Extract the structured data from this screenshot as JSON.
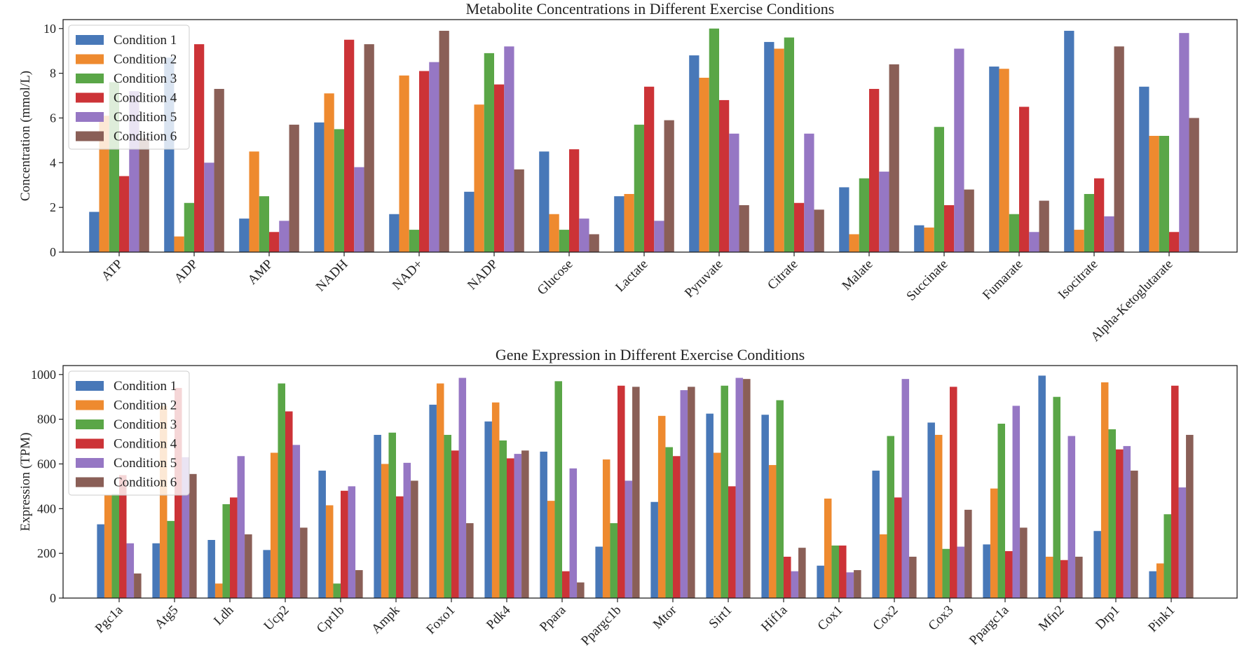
{
  "colors": [
    "#4878b8",
    "#ee8a2f",
    "#5aa647",
    "#cc3337",
    "#9677c4",
    "#8a5f57"
  ],
  "chart_data": [
    {
      "type": "bar",
      "title": "Metabolite Concentrations in Different Exercise Conditions",
      "xlabel": "",
      "ylabel": "Concentration (mmol/L)",
      "ylim": [
        0,
        10.4
      ],
      "yticks": [
        0,
        2,
        4,
        6,
        8,
        10
      ],
      "ytick_labels": [
        "0",
        "2",
        "4",
        "6",
        "8",
        "10"
      ],
      "legend_position": "top-left",
      "grid": false,
      "categories": [
        "ATP",
        "ADP",
        "AMP",
        "NADH",
        "NAD+",
        "NADP",
        "Glucose",
        "Lactate",
        "Pyruvate",
        "Citrate",
        "Malate",
        "Succinate",
        "Fumarate",
        "Isocitrate",
        "Alpha-Ketoglutarate"
      ],
      "series": [
        {
          "name": "Condition 1",
          "values": [
            1.8,
            8.7,
            1.5,
            5.8,
            1.7,
            2.7,
            4.5,
            2.5,
            8.8,
            9.4,
            2.9,
            1.2,
            8.3,
            9.9,
            7.4
          ]
        },
        {
          "name": "Condition 2",
          "values": [
            6.1,
            0.7,
            4.5,
            7.1,
            7.9,
            6.6,
            1.7,
            2.6,
            7.8,
            9.1,
            0.8,
            1.1,
            8.2,
            1.0,
            5.2
          ]
        },
        {
          "name": "Condition 3",
          "values": [
            7.6,
            2.2,
            2.5,
            5.5,
            1.0,
            8.9,
            1.0,
            5.7,
            10.0,
            9.6,
            3.3,
            5.6,
            1.7,
            2.6,
            5.2
          ]
        },
        {
          "name": "Condition 4",
          "values": [
            3.4,
            9.3,
            0.9,
            9.5,
            8.1,
            7.5,
            4.6,
            7.4,
            6.8,
            2.2,
            7.3,
            2.1,
            6.5,
            3.3,
            0.9
          ]
        },
        {
          "name": "Condition 5",
          "values": [
            7.2,
            4.0,
            1.4,
            3.8,
            8.5,
            9.2,
            1.5,
            1.4,
            5.3,
            5.3,
            3.6,
            9.1,
            0.9,
            1.6,
            9.8
          ]
        },
        {
          "name": "Condition 6",
          "values": [
            5.1,
            7.3,
            5.7,
            9.3,
            9.9,
            3.7,
            0.8,
            5.9,
            2.1,
            1.9,
            8.4,
            2.8,
            2.3,
            9.2,
            6.0
          ]
        }
      ]
    },
    {
      "type": "bar",
      "title": "Gene Expression in Different Exercise Conditions",
      "xlabel": "",
      "ylabel": "Expression (TPM)",
      "ylim": [
        0,
        1040
      ],
      "yticks": [
        0,
        200,
        400,
        600,
        800,
        1000
      ],
      "ytick_labels": [
        "0",
        "200",
        "400",
        "600",
        "800",
        "1000"
      ],
      "legend_position": "top-left",
      "grid": false,
      "categories": [
        "Pgc1a",
        "Atg5",
        "Ldh",
        "Ucp2",
        "Cpt1b",
        "Ampk",
        "Foxo1",
        "Pdk4",
        "Ppara",
        "Ppargc1b",
        "Mtor",
        "Sirt1",
        "Hif1a",
        "Cox1",
        "Cox2",
        "Cox3",
        "Ppargc1a",
        "Mfn2",
        "Drp1",
        "Pink1"
      ],
      "series": [
        {
          "name": "Condition 1",
          "values": [
            330,
            245,
            260,
            215,
            570,
            730,
            865,
            790,
            655,
            230,
            430,
            825,
            820,
            145,
            570,
            785,
            240,
            995,
            300,
            120
          ]
        },
        {
          "name": "Condition 2",
          "values": [
            460,
            860,
            65,
            650,
            415,
            600,
            960,
            875,
            435,
            620,
            815,
            650,
            595,
            445,
            285,
            730,
            490,
            185,
            965,
            155
          ]
        },
        {
          "name": "Condition 3",
          "values": [
            465,
            345,
            420,
            960,
            65,
            740,
            730,
            705,
            970,
            335,
            675,
            950,
            885,
            235,
            725,
            220,
            780,
            900,
            755,
            375
          ]
        },
        {
          "name": "Condition 4",
          "values": [
            550,
            940,
            450,
            835,
            480,
            455,
            660,
            625,
            120,
            950,
            635,
            500,
            185,
            235,
            450,
            945,
            210,
            170,
            665,
            950
          ]
        },
        {
          "name": "Condition 5",
          "values": [
            245,
            630,
            635,
            685,
            500,
            605,
            985,
            645,
            580,
            525,
            930,
            985,
            120,
            115,
            980,
            230,
            860,
            725,
            680,
            495
          ]
        },
        {
          "name": "Condition 6",
          "values": [
            110,
            555,
            285,
            315,
            125,
            525,
            335,
            660,
            70,
            945,
            945,
            980,
            225,
            125,
            185,
            395,
            315,
            185,
            570,
            730
          ]
        }
      ]
    }
  ]
}
